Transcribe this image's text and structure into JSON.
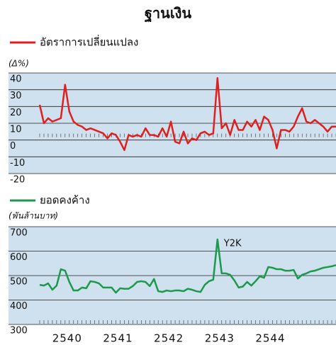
{
  "chart_data": [
    {
      "type": "line",
      "title": "ฐานเงิน",
      "y_label": "(Δ%)",
      "series": [
        {
          "name": "อัตราการเปลี่ยนแปลง",
          "color": "#e0201e",
          "values": [
            21,
            10,
            13,
            11,
            12,
            13,
            33,
            17,
            11,
            9,
            8,
            6,
            7,
            6,
            5,
            4,
            1,
            4,
            3,
            -1,
            -6,
            3,
            2,
            3,
            2,
            7,
            3,
            3,
            2,
            7,
            2,
            11,
            -1,
            -2,
            5,
            -2,
            1,
            0,
            4,
            5,
            3,
            4,
            37,
            7,
            10,
            3,
            12,
            6,
            6,
            11,
            8,
            12,
            6,
            14,
            12,
            6,
            -5,
            6,
            6,
            5,
            8,
            14,
            19,
            11,
            10,
            12,
            10,
            8,
            5,
            8,
            8
          ]
        }
      ],
      "xlim": [
        0,
        70
      ],
      "ylim": [
        -20,
        40
      ],
      "yticks": [
        -20,
        -10,
        0,
        10,
        20,
        30,
        40
      ],
      "grid": true
    },
    {
      "type": "line",
      "y_label": "(พันล้านบาท)",
      "annotation": "Y2K",
      "series": [
        {
          "name": "ยอดคงค้าง",
          "color": "#1a9a4a",
          "values": [
            462,
            459,
            468,
            442,
            459,
            526,
            520,
            474,
            439,
            439,
            451,
            448,
            477,
            474,
            468,
            451,
            451,
            451,
            430,
            448,
            446,
            446,
            457,
            474,
            477,
            474,
            457,
            486,
            436,
            433,
            439,
            436,
            439,
            439,
            436,
            446,
            442,
            436,
            433,
            462,
            477,
            483,
            648,
            509,
            509,
            503,
            480,
            451,
            455,
            474,
            459,
            477,
            497,
            491,
            535,
            532,
            526,
            526,
            520,
            520,
            523,
            488,
            503,
            509,
            517,
            520,
            526,
            532,
            535,
            538,
            543
          ]
        }
      ],
      "xlim": [
        0,
        70
      ],
      "ylim": [
        300,
        700
      ],
      "yticks": [
        300,
        400,
        500,
        600,
        700
      ],
      "xticks": [
        {
          "value": 6.5,
          "label": "2540"
        },
        {
          "value": 18.5,
          "label": "2541"
        },
        {
          "value": 30.5,
          "label": "2542"
        },
        {
          "value": 42.5,
          "label": "2543"
        },
        {
          "value": 54.5,
          "label": "2544"
        }
      ],
      "grid": true
    }
  ]
}
